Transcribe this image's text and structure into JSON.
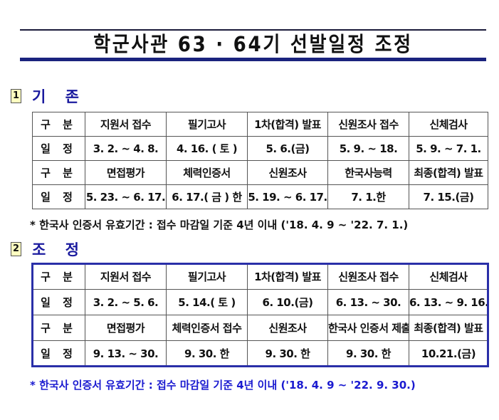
{
  "title": "학군사관 63 · 64기 선발일정 조정",
  "sections": [
    {
      "number": "1",
      "label": "기 존",
      "rows": [
        [
          "구 분",
          "지원서 접수",
          "필기고사",
          "1차(합격) 발표",
          "신원조사 접수",
          "신체검사"
        ],
        [
          "일 정",
          "3. 2. ~ 4. 8.",
          "4. 16. ( 토 )",
          "5. 6.(금)",
          "5. 9. ~ 18.",
          "5. 9. ~ 7. 1."
        ],
        [
          "구 분",
          "면접평가",
          "체력인증서",
          "신원조사",
          "한국사능력",
          "최종(합격) 발표"
        ],
        [
          "일 정",
          "5. 23. ~ 6. 17.",
          "6. 17.( 금 ) 한",
          "5. 19. ~ 6. 17.",
          "7. 1.한",
          "7. 15.(금)"
        ]
      ],
      "note": "*  한국사 인증서 유효기간 : 접수 마감일 기준 4년 이내 ('18. 4. 9 ~ '22. 7. 1.)"
    },
    {
      "number": "2",
      "label": "조 정",
      "rows": [
        [
          "구 분",
          "지원서 접수",
          "필기고사",
          "1차(합격) 발표",
          "신원조사 접수",
          "신체검사"
        ],
        [
          "일 정",
          "3. 2. ~ 5. 6.",
          "5. 14.( 토 )",
          "6. 10.(금)",
          "6. 13. ~ 30.",
          "6. 13. ~ 9. 16."
        ],
        [
          "구 분",
          "면접평가",
          "체력인증서 접수",
          "신원조사",
          "한국사 인증서 제출",
          "최종(합격) 발표"
        ],
        [
          "일 정",
          "9. 13. ~ 30.",
          "9. 30. 한",
          "9. 30. 한",
          "9. 30. 한",
          "10.21.(금)"
        ]
      ],
      "note": "*  한국사 인증서 유효기간 : 접수 마감일 기준 4년 이내 ('18. 4. 9 ~ '22. 9. 30.)"
    }
  ],
  "colors": {
    "heading": "#1a1a9e",
    "adjusted_border": "#2a2fa8",
    "adjusted_note": "#1a1ad0"
  }
}
